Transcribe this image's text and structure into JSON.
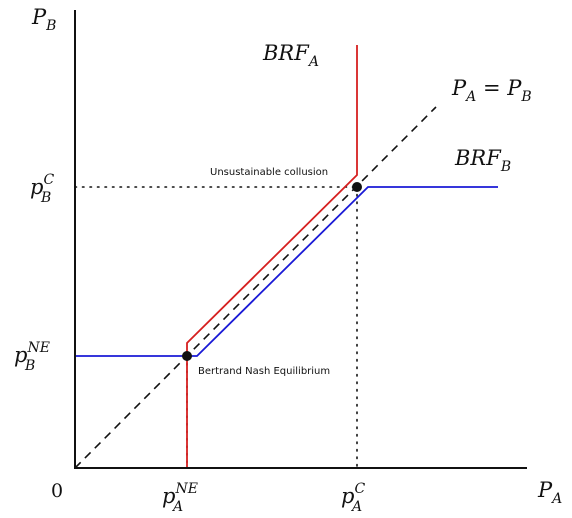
{
  "axes": {
    "y_label": {
      "base": "P",
      "sub": "B"
    },
    "x_label": {
      "base": "P",
      "sub": "A"
    },
    "origin": "0"
  },
  "ticks": {
    "pB_C": {
      "base": "p",
      "sup": "C",
      "sub": "B"
    },
    "pB_NE": {
      "base": "p",
      "sup": "NE",
      "sub": "B"
    },
    "pA_NE": {
      "base": "p",
      "sup": "NE",
      "sub": "A"
    },
    "pA_C": {
      "base": "p",
      "sup": "C",
      "sub": "A"
    }
  },
  "curves": {
    "brf_a": {
      "base": "BRF",
      "sub": "A",
      "color": "#d62020"
    },
    "brf_b": {
      "base": "BRF",
      "sub": "B",
      "color": "#1a1ad6"
    },
    "diagonal": {
      "lhs": "P",
      "lhs_sub": "A",
      "eq": " = ",
      "rhs": "P",
      "rhs_sub": "B"
    }
  },
  "annotations": {
    "collusion": "Unsustainable collusion",
    "nash": "Bertrand Nash Equilibrium"
  }
}
